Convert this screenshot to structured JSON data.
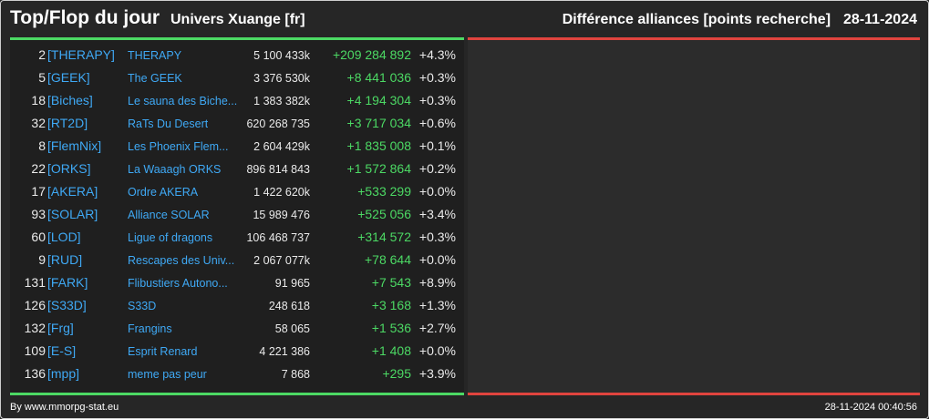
{
  "header": {
    "title": "Top/Flop du jour",
    "universe": "Univers Xuange [fr]",
    "ranking_type": "Différence alliances [points recherche]",
    "date": "28-11-2024"
  },
  "colors": {
    "positive": "#4cd964",
    "negative": "#e0443e",
    "link": "#3fa9f5",
    "background": "#262626"
  },
  "top_rows": [
    {
      "rank": "2",
      "tag": "[THERAPY]",
      "name": "THERAPY",
      "points": "5 100 433k",
      "diff": "+209 284 892",
      "pct": "+4.3%"
    },
    {
      "rank": "5",
      "tag": "[GEEK]",
      "name": "The GEEK",
      "points": "3 376 530k",
      "diff": "+8 441 036",
      "pct": "+0.3%"
    },
    {
      "rank": "18",
      "tag": "[Biches]",
      "name": "Le sauna des Biche...",
      "points": "1 383 382k",
      "diff": "+4 194 304",
      "pct": "+0.3%"
    },
    {
      "rank": "32",
      "tag": "[RT2D]",
      "name": "RaTs Du Desert",
      "points": "620 268 735",
      "diff": "+3 717 034",
      "pct": "+0.6%"
    },
    {
      "rank": "8",
      "tag": "[FlemNix]",
      "name": "Les Phoenix Flem...",
      "points": "2 604 429k",
      "diff": "+1 835 008",
      "pct": "+0.1%"
    },
    {
      "rank": "22",
      "tag": "[ORKS]",
      "name": "La Waaagh ORKS",
      "points": "896 814 843",
      "diff": "+1 572 864",
      "pct": "+0.2%"
    },
    {
      "rank": "17",
      "tag": "[AKERA]",
      "name": "Ordre AKERA",
      "points": "1 422 620k",
      "diff": "+533 299",
      "pct": "+0.0%"
    },
    {
      "rank": "93",
      "tag": "[SOLAR]",
      "name": "Alliance SOLAR",
      "points": "15 989 476",
      "diff": "+525 056",
      "pct": "+3.4%"
    },
    {
      "rank": "60",
      "tag": "[LOD]",
      "name": "Ligue of dragons",
      "points": "106 468 737",
      "diff": "+314 572",
      "pct": "+0.3%"
    },
    {
      "rank": "9",
      "tag": "[RUD]",
      "name": "Rescapes des Univ...",
      "points": "2 067 077k",
      "diff": "+78 644",
      "pct": "+0.0%"
    },
    {
      "rank": "131",
      "tag": "[FARK]",
      "name": "Flibustiers Autono...",
      "points": "91 965",
      "diff": "+7 543",
      "pct": "+8.9%"
    },
    {
      "rank": "126",
      "tag": "[S33D]",
      "name": "S33D",
      "points": "248 618",
      "diff": "+3 168",
      "pct": "+1.3%"
    },
    {
      "rank": "132",
      "tag": "[Frg]",
      "name": "Frangins",
      "points": "58 065",
      "diff": "+1 536",
      "pct": "+2.7%"
    },
    {
      "rank": "109",
      "tag": "[E-S]",
      "name": "Esprit Renard",
      "points": "4 221 386",
      "diff": "+1 408",
      "pct": "+0.0%"
    },
    {
      "rank": "136",
      "tag": "[mpp]",
      "name": "meme pas peur",
      "points": "7 868",
      "diff": "+295",
      "pct": "+3.9%"
    }
  ],
  "footer": {
    "credit": "By www.mmorpg-stat.eu",
    "timestamp": "28-11-2024 00:40:56"
  }
}
